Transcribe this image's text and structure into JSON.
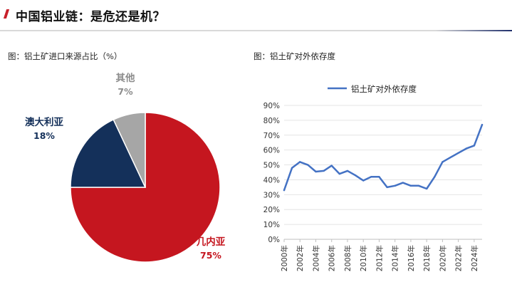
{
  "header": {
    "title": "中国铝业链：是危还是机？",
    "accent_color": "#c8202a"
  },
  "captions": {
    "left": "图：铝土矿进口来源占比（%）",
    "right": "图：铝土矿对外依存度"
  },
  "chart_data": [
    {
      "type": "pie",
      "slices": [
        {
          "name": "几内亚",
          "value": 75,
          "label": "75%",
          "color": "#c5161f"
        },
        {
          "name": "澳大利亚",
          "value": 18,
          "label": "18%",
          "color": "#14305a"
        },
        {
          "name": "其他",
          "value": 7,
          "label": "7%",
          "color": "#a6a6a6"
        }
      ],
      "legend": "none"
    },
    {
      "type": "line",
      "series": [
        {
          "name": "铝土矿对外依存度",
          "color": "#4472c4",
          "x": [
            2000,
            2001,
            2002,
            2003,
            2004,
            2005,
            2006,
            2007,
            2008,
            2009,
            2010,
            2011,
            2012,
            2013,
            2014,
            2015,
            2016,
            2017,
            2018,
            2019,
            2020,
            2021,
            2022,
            2023,
            2024,
            2025
          ],
          "values": [
            33,
            48,
            52,
            50,
            45.5,
            46,
            49.5,
            44,
            46,
            43,
            39.5,
            42,
            42,
            35,
            36,
            38,
            36,
            36,
            34,
            42,
            52,
            55,
            58,
            61,
            63,
            77
          ]
        }
      ],
      "y_ticks": [
        "0%",
        "10%",
        "20%",
        "30%",
        "40%",
        "50%",
        "60%",
        "70%",
        "80%",
        "90%"
      ],
      "ylim": [
        0,
        90
      ],
      "x_ticks": [
        "2000年",
        "2002年",
        "2004年",
        "2006年",
        "2008年",
        "2010年",
        "2012年",
        "2014年",
        "2016年",
        "2018年",
        "2020年",
        "2022年",
        "2024年"
      ],
      "grid": true,
      "legend": "top"
    }
  ]
}
